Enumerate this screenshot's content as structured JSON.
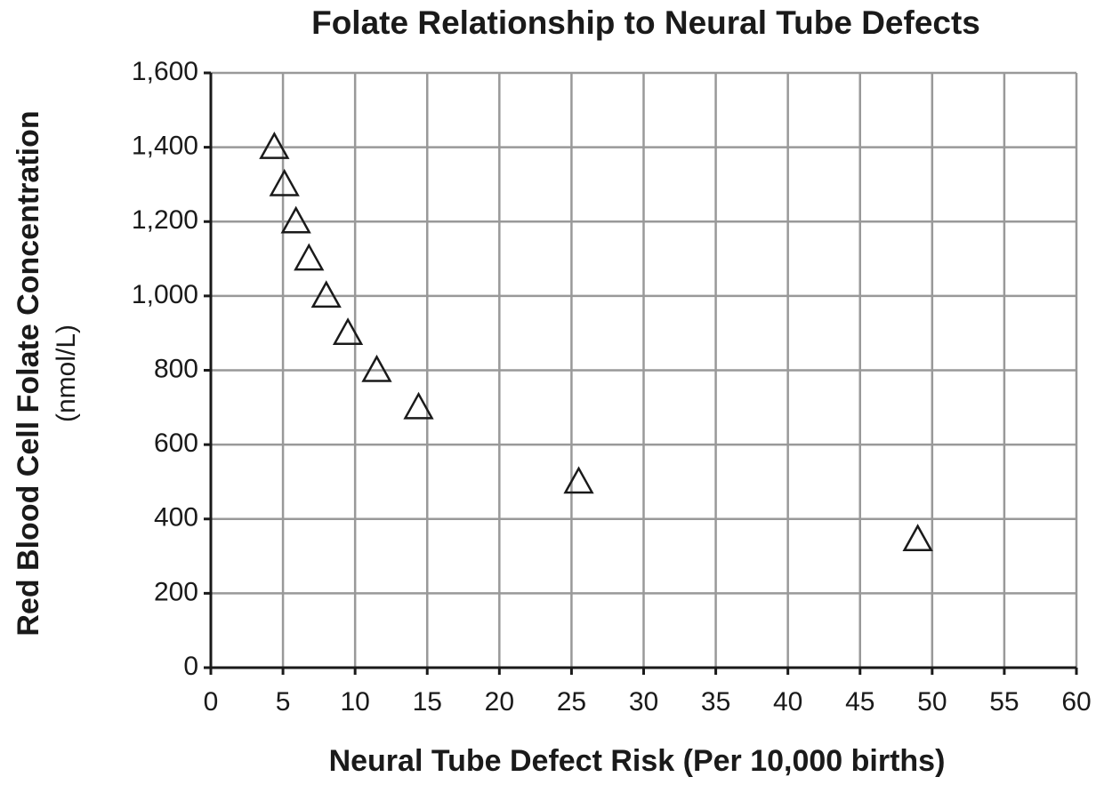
{
  "chart_data": {
    "type": "scatter",
    "title": "Folate Relationship to Neural Tube Defects",
    "xlabel": "Neural Tube Defect Risk (Per 10,000 births)",
    "ylabel": "Red Blood Cell Folate Concentration",
    "ylabel_unit": "(nmol/L)",
    "x": [
      4.4,
      5.1,
      5.9,
      6.8,
      8.0,
      9.5,
      11.5,
      14.4,
      25.5,
      49.0
    ],
    "values": [
      1400,
      1300,
      1200,
      1100,
      1000,
      900,
      800,
      700,
      500,
      345
    ],
    "color": "#1a1a1a",
    "marker": "triangle",
    "xlim": [
      0,
      60
    ],
    "xticks": [
      0,
      5,
      10,
      15,
      20,
      25,
      30,
      35,
      40,
      45,
      50,
      55,
      60
    ],
    "ylim": [
      0,
      1600
    ],
    "yticks": [
      0,
      200,
      400,
      600,
      800,
      {
        "value": 1000,
        "label": "1,000"
      },
      {
        "value": 1200,
        "label": "1,200"
      },
      {
        "value": 1400,
        "label": "1,400"
      },
      {
        "value": 1600,
        "label": "1,600"
      }
    ],
    "grid": true
  }
}
